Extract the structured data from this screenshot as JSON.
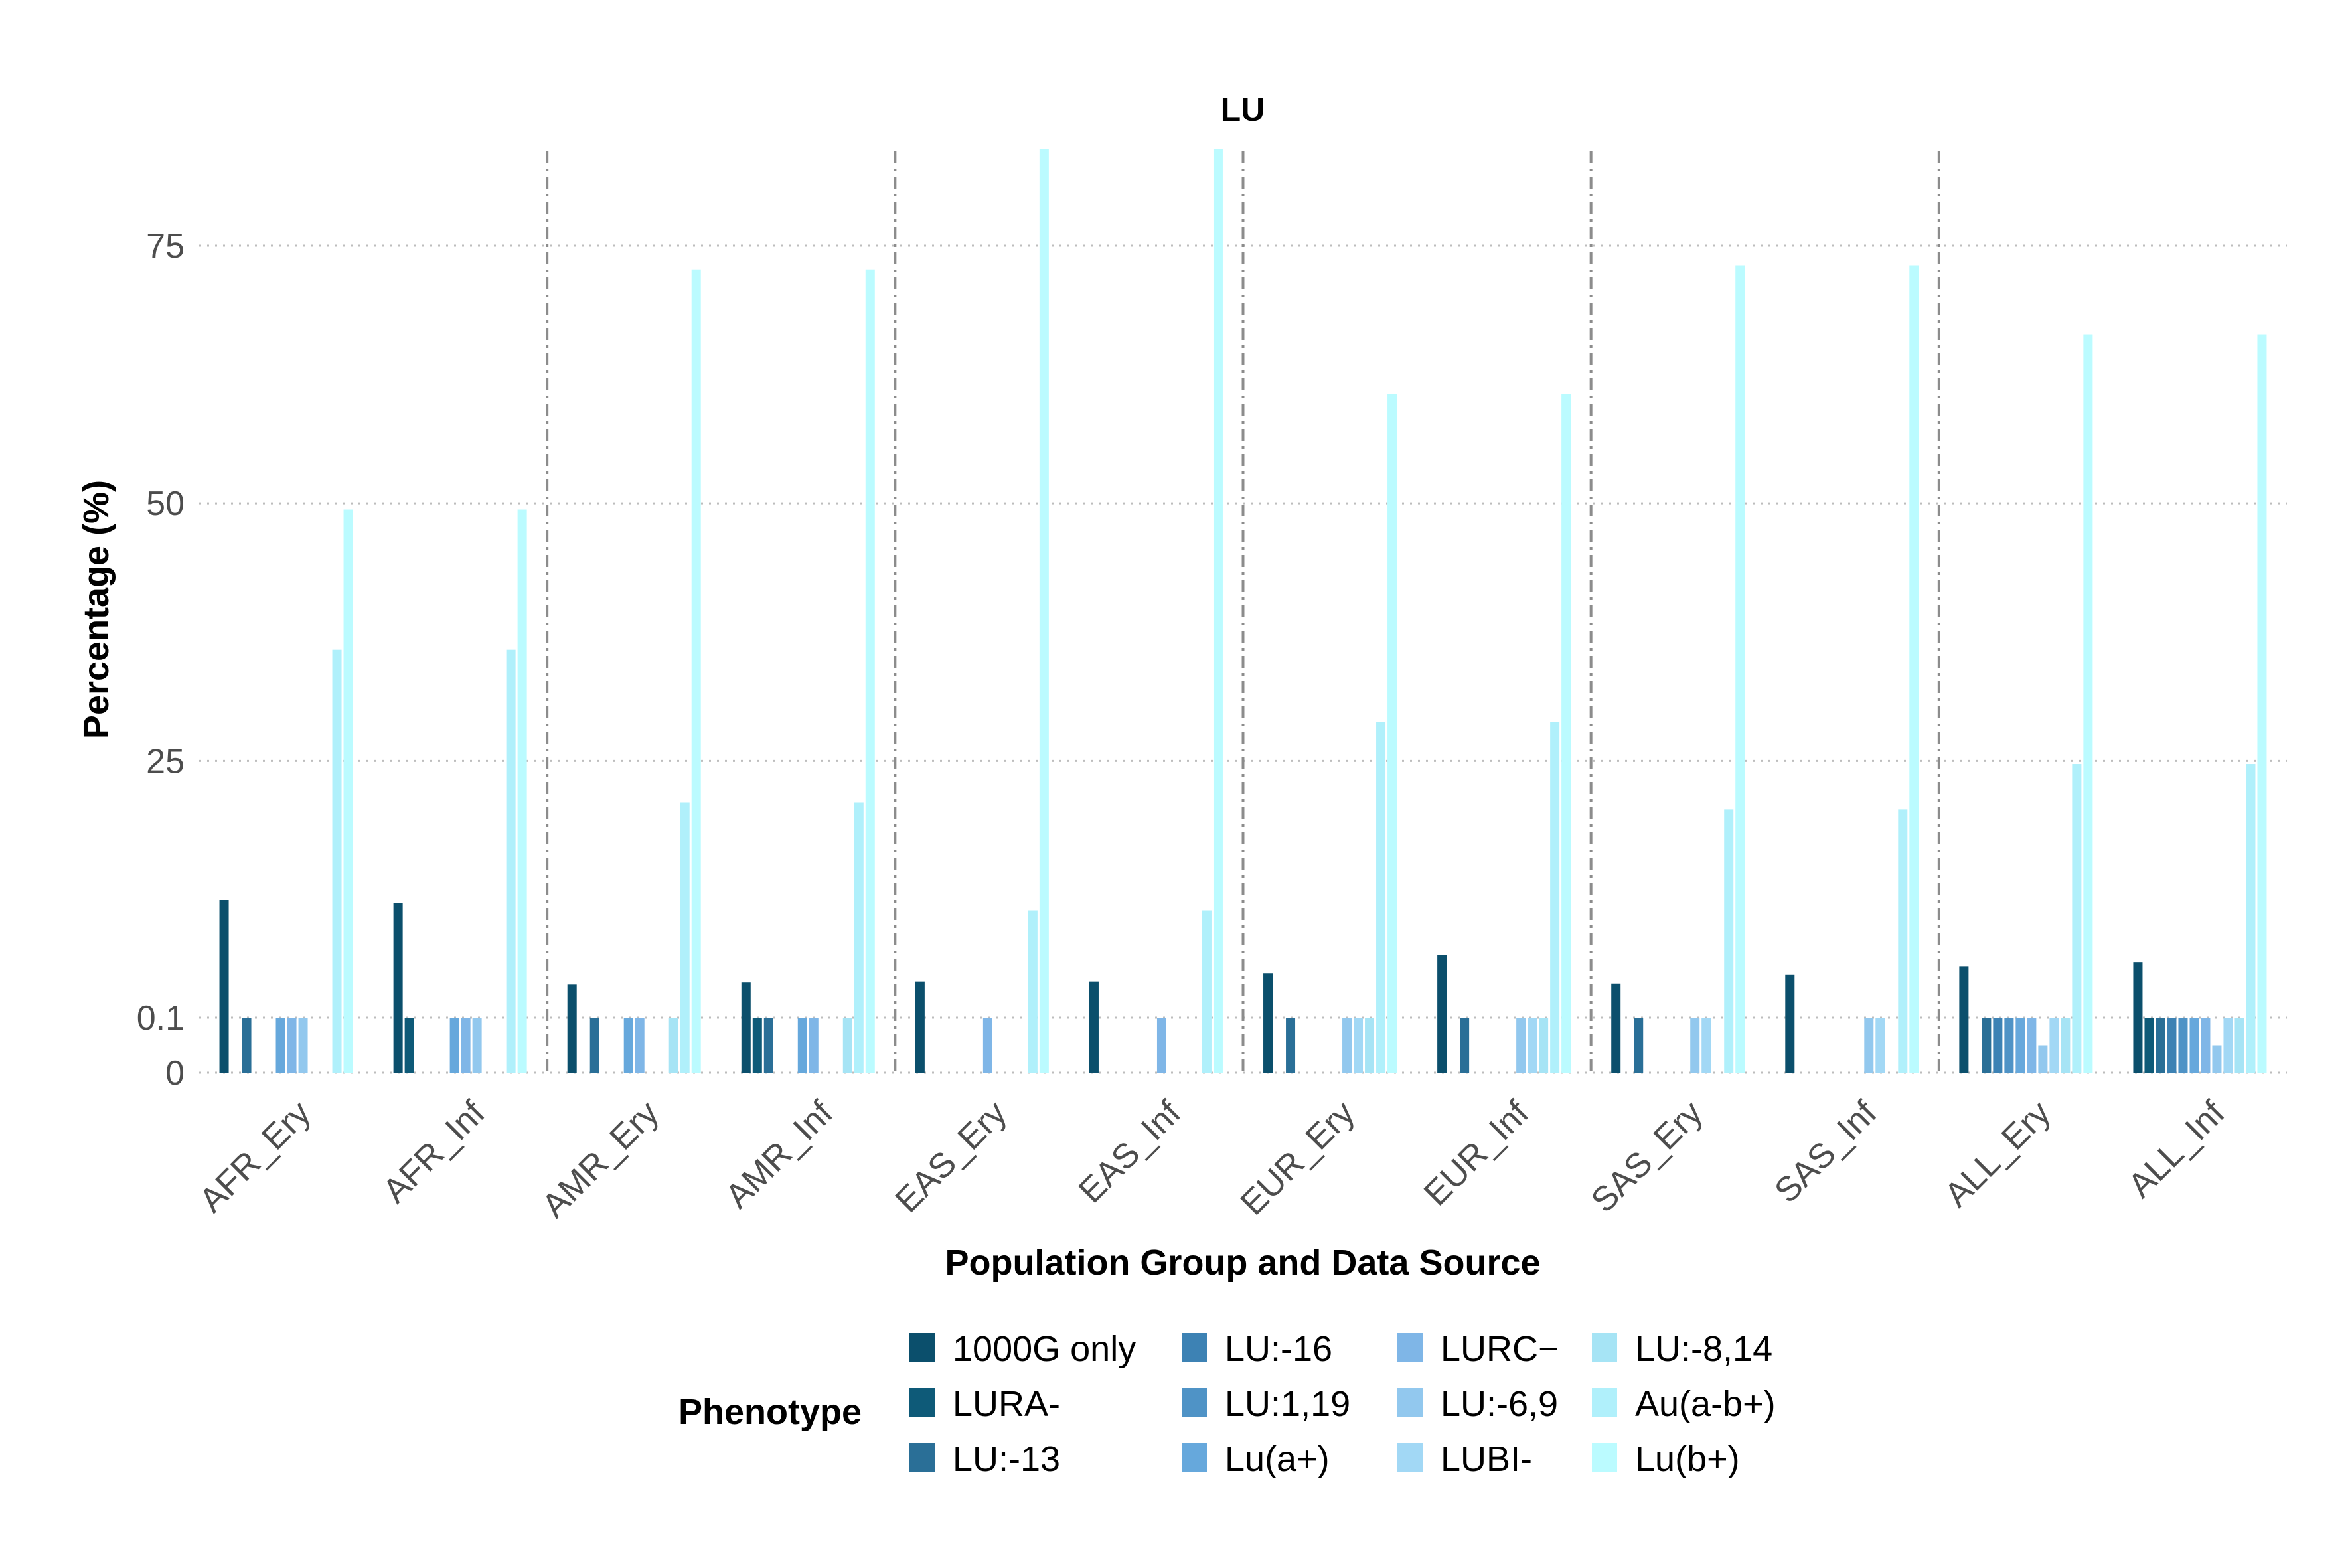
{
  "chart_data": {
    "type": "bar",
    "title": "LU",
    "xlabel": "Population Group and Data Source",
    "ylabel": "Percentage (%)",
    "y_ticks": [
      "0",
      "0.1",
      "25",
      "50",
      "75"
    ],
    "categories": [
      "AFR_Ery",
      "AFR_Inf",
      "AMR_Ery",
      "AMR_Inf",
      "EAS_Ery",
      "EAS_Inf",
      "EUR_Ery",
      "EUR_Inf",
      "SAS_Ery",
      "SAS_Inf",
      "ALL_Ery",
      "ALL_Inf"
    ],
    "legend_title": "Phenotype",
    "legend_position": "bottom",
    "grid": "horizontal dotted",
    "group_separators": "dash-dot vertical lines between population groups",
    "series": [
      {
        "name": "1000G only",
        "color": "#0b4f6c",
        "values": [
          11.5,
          11.2,
          3.3,
          3.5,
          3.6,
          3.6,
          4.4,
          6.2,
          3.4,
          4.3,
          5.1,
          5.5
        ]
      },
      {
        "name": "LURA-",
        "color": "#0e5a78",
        "values": [
          null,
          0.1,
          null,
          0.1,
          null,
          null,
          null,
          null,
          null,
          null,
          null,
          0.1
        ]
      },
      {
        "name": "LU:-13",
        "color": "#2a6f97",
        "values": [
          0.1,
          null,
          0.1,
          0.1,
          null,
          null,
          0.1,
          0.1,
          0.1,
          null,
          0.1,
          0.1
        ]
      },
      {
        "name": "LU:-16",
        "color": "#3d82b4",
        "values": [
          null,
          null,
          null,
          null,
          null,
          null,
          null,
          null,
          null,
          null,
          0.1,
          0.1
        ]
      },
      {
        "name": "LU:1,19",
        "color": "#4f93c6",
        "values": [
          null,
          null,
          null,
          null,
          null,
          null,
          null,
          null,
          null,
          null,
          0.1,
          0.1
        ]
      },
      {
        "name": "Lu(a+)",
        "color": "#66a8dc",
        "values": [
          0.1,
          0.1,
          0.1,
          0.1,
          null,
          null,
          null,
          null,
          null,
          null,
          0.1,
          0.1
        ]
      },
      {
        "name": "LURC−",
        "color": "#7fb6e7",
        "values": [
          0.1,
          0.1,
          0.1,
          0.1,
          0.1,
          0.1,
          null,
          null,
          null,
          null,
          0.1,
          0.1
        ]
      },
      {
        "name": "LU:-6,9",
        "color": "#92c8ee",
        "values": [
          0.1,
          0.1,
          null,
          null,
          null,
          null,
          0.1,
          0.1,
          0.1,
          0.1,
          0.05,
          0.05
        ]
      },
      {
        "name": "LUBI-",
        "color": "#a2d8f5",
        "values": [
          null,
          null,
          null,
          null,
          null,
          null,
          0.1,
          0.1,
          0.1,
          0.1,
          0.1,
          0.1
        ]
      },
      {
        "name": "LU:-8,14",
        "color": "#a6e4f5",
        "values": [
          null,
          null,
          0.1,
          0.1,
          null,
          null,
          0.1,
          0.1,
          null,
          null,
          0.1,
          0.1
        ]
      },
      {
        "name": "Au(a-b+)",
        "color": "#b0f0fb",
        "values": [
          35.8,
          35.8,
          21.0,
          21.0,
          10.5,
          10.5,
          28.8,
          28.8,
          20.3,
          20.3,
          24.7,
          24.7
        ]
      },
      {
        "name": "Lu(b+)",
        "color": "#bbfbff",
        "values": [
          49.4,
          49.4,
          72.7,
          72.7,
          84.4,
          84.4,
          60.6,
          60.6,
          73.1,
          73.1,
          66.4,
          66.4
        ]
      }
    ]
  }
}
